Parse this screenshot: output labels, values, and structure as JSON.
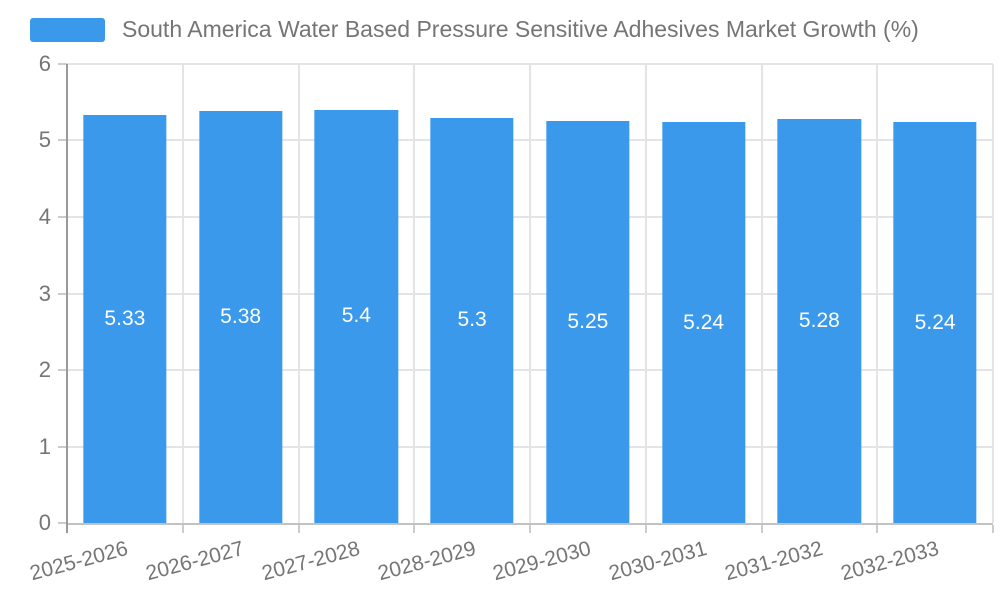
{
  "chart_data": {
    "type": "bar",
    "title": "South America Water Based Pressure Sensitive Adhesives Market Growth (%)",
    "categories": [
      "2025-2026",
      "2026-2027",
      "2027-2028",
      "2028-2029",
      "2029-2030",
      "2030-2031",
      "2031-2032",
      "2032-2033"
    ],
    "values": [
      5.33,
      5.38,
      5.4,
      5.3,
      5.25,
      5.24,
      5.28,
      5.24
    ],
    "xlabel": "",
    "ylabel": "",
    "ylim": [
      0,
      6
    ],
    "y_ticks": [
      0,
      1,
      2,
      3,
      4,
      5,
      6
    ],
    "grid": true,
    "legend_position": "top-left",
    "bar_width_fraction": 0.72,
    "x_label_rotation_deg": -15,
    "colors": {
      "bar": "#3B99EC",
      "grid": "#e4e4e4",
      "axis_y": "#9a9a9a",
      "axis_x": "#c2c2c2",
      "tick": "#cccccc",
      "text": "#757575",
      "bar_label": "#ffffff",
      "bg": "#ffffff"
    }
  }
}
